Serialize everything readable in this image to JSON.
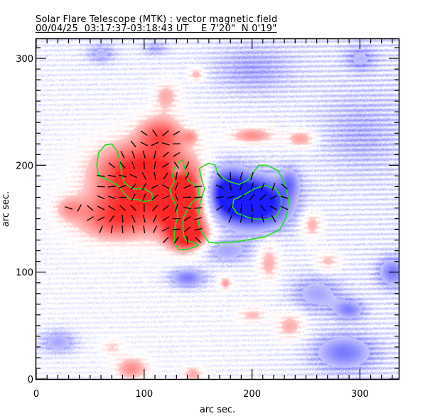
{
  "header": {
    "title_line1": "Solar Flare Telescope (MTK) : vector magnetic field",
    "title_line2": "00/04/25  03:17:37-03:18:43 UT    E 7'20\"  N 0'19\""
  },
  "chart_data": {
    "type": "heatmap",
    "subtype": "vector magnetogram (line-of-sight field image with transverse-field vectors and contours)",
    "title": "Solar Flare Telescope (MTK) : vector magnetic field",
    "subtitle": "00/04/25  03:17:37-03:18:43 UT    E 7'20\"  N 0'19\"",
    "xlabel": "arc sec.",
    "ylabel": "arc sec.",
    "xlim": [
      0,
      336
    ],
    "ylim": [
      0,
      318
    ],
    "x_major_ticks": [
      0,
      100,
      200,
      300
    ],
    "y_major_ticks": [
      0,
      100,
      200,
      300
    ],
    "minor_tick_step": 10,
    "colors": {
      "positive_polarity": "#ff2a2a",
      "negative_polarity": "#1e1eff",
      "contour": "#22dd22",
      "vectors": "#000000",
      "background": "#ffffff"
    },
    "legend": "none",
    "polarity_regions": [
      {
        "polarity": "positive",
        "x": 95,
        "y": 190,
        "rx": 45,
        "ry": 32,
        "strength": 0.95
      },
      {
        "polarity": "positive",
        "x": 75,
        "y": 150,
        "rx": 40,
        "ry": 22,
        "strength": 0.65
      },
      {
        "polarity": "positive",
        "x": 135,
        "y": 165,
        "rx": 25,
        "ry": 35,
        "strength": 0.95
      },
      {
        "polarity": "positive",
        "x": 115,
        "y": 230,
        "rx": 22,
        "ry": 18,
        "strength": 0.55
      },
      {
        "polarity": "positive",
        "x": 120,
        "y": 265,
        "rx": 12,
        "ry": 14,
        "strength": 0.35
      },
      {
        "polarity": "positive",
        "x": 140,
        "y": 135,
        "rx": 18,
        "ry": 14,
        "strength": 0.8
      },
      {
        "polarity": "positive",
        "x": 30,
        "y": 160,
        "rx": 15,
        "ry": 12,
        "strength": 0.3
      },
      {
        "polarity": "positive",
        "x": 200,
        "y": 228,
        "rx": 22,
        "ry": 8,
        "strength": 0.45
      },
      {
        "polarity": "positive",
        "x": 245,
        "y": 225,
        "rx": 14,
        "ry": 9,
        "strength": 0.4
      },
      {
        "polarity": "positive",
        "x": 148,
        "y": 285,
        "rx": 8,
        "ry": 7,
        "strength": 0.35
      },
      {
        "polarity": "positive",
        "x": 143,
        "y": 227,
        "rx": 8,
        "ry": 7,
        "strength": 0.3
      },
      {
        "polarity": "positive",
        "x": 255,
        "y": 145,
        "rx": 10,
        "ry": 14,
        "strength": 0.35
      },
      {
        "polarity": "positive",
        "x": 215,
        "y": 110,
        "rx": 10,
        "ry": 20,
        "strength": 0.35
      },
      {
        "polarity": "positive",
        "x": 175,
        "y": 90,
        "rx": 6,
        "ry": 6,
        "strength": 0.4
      },
      {
        "polarity": "positive",
        "x": 270,
        "y": 110,
        "rx": 12,
        "ry": 10,
        "strength": 0.3
      },
      {
        "polarity": "positive",
        "x": 200,
        "y": 60,
        "rx": 14,
        "ry": 8,
        "strength": 0.3
      },
      {
        "polarity": "positive",
        "x": 235,
        "y": 50,
        "rx": 14,
        "ry": 14,
        "strength": 0.35
      },
      {
        "polarity": "positive",
        "x": 88,
        "y": 10,
        "rx": 16,
        "ry": 12,
        "strength": 0.45
      },
      {
        "polarity": "positive",
        "x": 70,
        "y": 30,
        "rx": 10,
        "ry": 8,
        "strength": 0.25
      },
      {
        "polarity": "positive",
        "x": 145,
        "y": 5,
        "rx": 10,
        "ry": 8,
        "strength": 0.35
      },
      {
        "polarity": "negative",
        "x": 205,
        "y": 165,
        "rx": 32,
        "ry": 25,
        "strength": 1.0
      },
      {
        "polarity": "negative",
        "x": 175,
        "y": 175,
        "rx": 22,
        "ry": 25,
        "strength": 0.8
      },
      {
        "polarity": "negative",
        "x": 130,
        "y": 195,
        "rx": 8,
        "ry": 8,
        "strength": 0.4
      },
      {
        "polarity": "negative",
        "x": 140,
        "y": 95,
        "rx": 18,
        "ry": 10,
        "strength": 0.5
      },
      {
        "polarity": "negative",
        "x": 175,
        "y": 120,
        "rx": 25,
        "ry": 12,
        "strength": 0.35
      },
      {
        "polarity": "negative",
        "x": 260,
        "y": 80,
        "rx": 25,
        "ry": 18,
        "strength": 0.35
      },
      {
        "polarity": "negative",
        "x": 290,
        "y": 65,
        "rx": 15,
        "ry": 10,
        "strength": 0.45
      },
      {
        "polarity": "negative",
        "x": 285,
        "y": 25,
        "rx": 30,
        "ry": 18,
        "strength": 0.5
      },
      {
        "polarity": "negative",
        "x": 330,
        "y": 100,
        "rx": 15,
        "ry": 15,
        "strength": 0.5
      },
      {
        "polarity": "negative",
        "x": 20,
        "y": 35,
        "rx": 18,
        "ry": 12,
        "strength": 0.35
      },
      {
        "polarity": "negative",
        "x": 235,
        "y": 185,
        "rx": 10,
        "ry": 15,
        "strength": 0.35
      },
      {
        "polarity": "negative",
        "x": 60,
        "y": 305,
        "rx": 14,
        "ry": 10,
        "strength": 0.3
      },
      {
        "polarity": "negative",
        "x": 200,
        "y": 290,
        "rx": 40,
        "ry": 25,
        "strength": 0.25
      },
      {
        "polarity": "negative",
        "x": 300,
        "y": 230,
        "rx": 40,
        "ry": 40,
        "strength": 0.2
      },
      {
        "polarity": "negative",
        "x": 300,
        "y": 300,
        "rx": 15,
        "ry": 12,
        "strength": 0.3
      },
      {
        "polarity": "negative",
        "x": 110,
        "y": 310,
        "rx": 12,
        "ry": 8,
        "strength": 0.25
      }
    ],
    "contours": [
      {
        "polarity": "positive",
        "points": [
          [
            58,
            212
          ],
          [
            64,
            219
          ],
          [
            70,
            220
          ],
          [
            75,
            213
          ],
          [
            78,
            203
          ],
          [
            79,
            192
          ],
          [
            82,
            183
          ],
          [
            90,
            178
          ],
          [
            100,
            178
          ],
          [
            107,
            174
          ],
          [
            108,
            168
          ],
          [
            101,
            166
          ],
          [
            94,
            168
          ],
          [
            87,
            168
          ],
          [
            82,
            173
          ],
          [
            77,
            180
          ],
          [
            67,
            186
          ],
          [
            58,
            190
          ],
          [
            56,
            200
          ]
        ]
      },
      {
        "polarity": "positive",
        "points": [
          [
            128,
            197
          ],
          [
            132,
            203
          ],
          [
            136,
            205
          ],
          [
            138,
            196
          ],
          [
            141,
            185
          ],
          [
            150,
            180
          ],
          [
            151,
            170
          ],
          [
            144,
            165
          ],
          [
            140,
            158
          ],
          [
            136,
            150
          ],
          [
            136,
            140
          ],
          [
            137,
            133
          ],
          [
            140,
            129
          ],
          [
            146,
            128
          ],
          [
            150,
            125
          ],
          [
            145,
            123
          ],
          [
            138,
            121
          ],
          [
            132,
            121
          ],
          [
            128,
            127
          ],
          [
            128,
            140
          ],
          [
            131,
            152
          ],
          [
            130,
            162
          ],
          [
            126,
            169
          ],
          [
            124,
            177
          ],
          [
            128,
            185
          ],
          [
            126,
            190
          ]
        ]
      },
      {
        "polarity": "negative",
        "points": [
          [
            151,
            197
          ],
          [
            160,
            202
          ],
          [
            166,
            200
          ],
          [
            168,
            192
          ],
          [
            178,
            185
          ],
          [
            188,
            182
          ],
          [
            196,
            186
          ],
          [
            206,
            200
          ],
          [
            214,
            200
          ],
          [
            224,
            195
          ],
          [
            230,
            184
          ],
          [
            234,
            168
          ],
          [
            232,
            152
          ],
          [
            226,
            140
          ],
          [
            212,
            133
          ],
          [
            195,
            130
          ],
          [
            182,
            128
          ],
          [
            174,
            128
          ],
          [
            167,
            127
          ],
          [
            160,
            128
          ],
          [
            156,
            133
          ],
          [
            152,
            140
          ],
          [
            149,
            150
          ],
          [
            152,
            165
          ],
          [
            156,
            178
          ],
          [
            153,
            188
          ]
        ]
      },
      {
        "polarity": "negative",
        "points": [
          [
            182,
            161
          ],
          [
            186,
            155
          ],
          [
            200,
            150
          ],
          [
            214,
            149
          ],
          [
            222,
            152
          ],
          [
            227,
            160
          ],
          [
            227,
            170
          ],
          [
            222,
            178
          ],
          [
            212,
            181
          ],
          [
            202,
            178
          ],
          [
            192,
            172
          ],
          [
            183,
            168
          ]
        ]
      }
    ],
    "vector_grid_spacing_arcsec": 10,
    "vector_field_description": "Transverse field vectors drawn where field is strong: fanning outward (pointing away) from positive region at left, converging toward the negative sunspot core near (205,165); horizontal vectors bridging the polarity inversion line near x≈130-160."
  }
}
